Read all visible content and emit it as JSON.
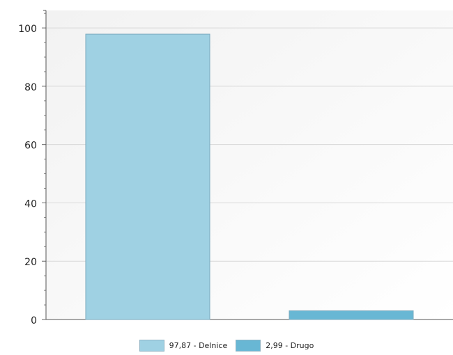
{
  "chart_data": {
    "type": "bar",
    "categories": [
      "97,87 - Delnice",
      "2,99 - Drugo"
    ],
    "values": [
      97.87,
      2.99
    ],
    "colors": [
      "#9fd1e3",
      "#68b7d4"
    ],
    "yticks": [
      "0",
      "20",
      "40",
      "60",
      "80",
      "100"
    ],
    "ylim": [
      0,
      106
    ],
    "grid": true,
    "legend_position": "bottom"
  },
  "legend": [
    {
      "label": "97,87 - Delnice",
      "color": "#9fd1e3"
    },
    {
      "label": "2,99 - Drugo",
      "color": "#68b7d4"
    }
  ]
}
